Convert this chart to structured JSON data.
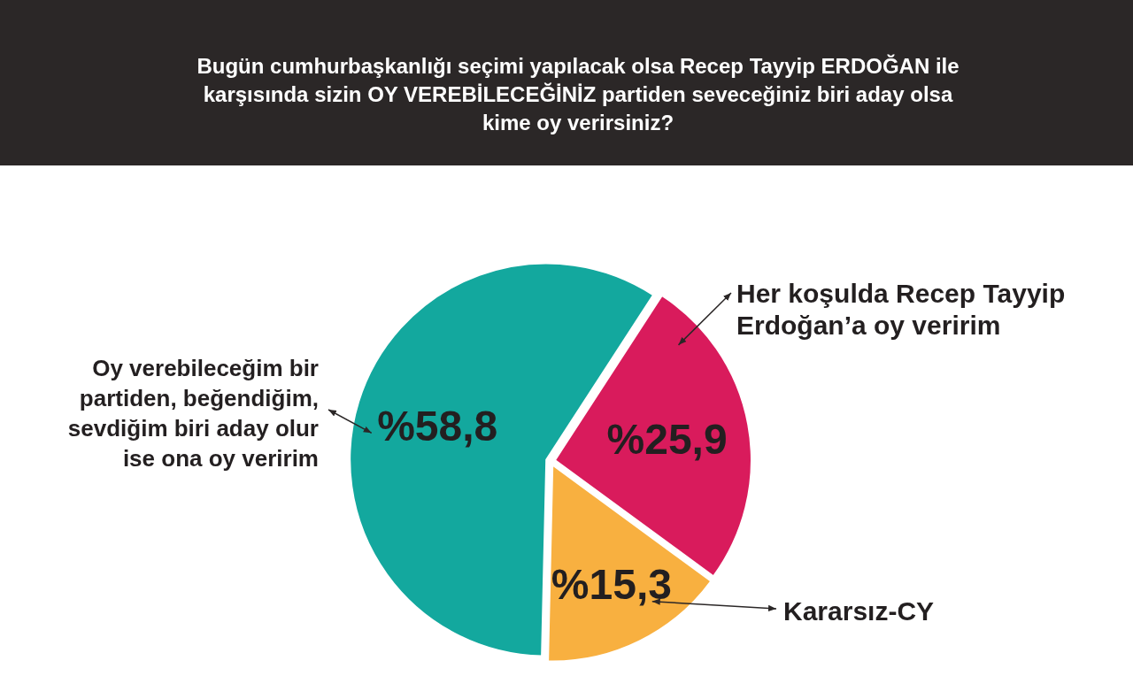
{
  "chart_data": {
    "type": "pie",
    "title": "Bugün cumhurbaşkanlığı seçimi yapılacak olsa Recep Tayyip ERDOĞAN ile karşısında sizin OY VEREBİLECEĞİNİZ partiden seveceğiniz biri aday olsa kime oy verirsiniz?",
    "categories": [
      "Her koşulda Recep Tayyip Erdoğan’a oy veririm",
      "Kararsız-CY",
      "Oy verebileceğim bir partiden, beğendiğim, sevdiğim biri aday olur ise ona oy veririm"
    ],
    "values": [
      25.9,
      15.3,
      58.8
    ],
    "colors": [
      "#d91b5c",
      "#f8b040",
      "#13a89e"
    ],
    "value_labels": [
      "%25,9",
      "%15,3",
      "%58,8"
    ]
  }
}
